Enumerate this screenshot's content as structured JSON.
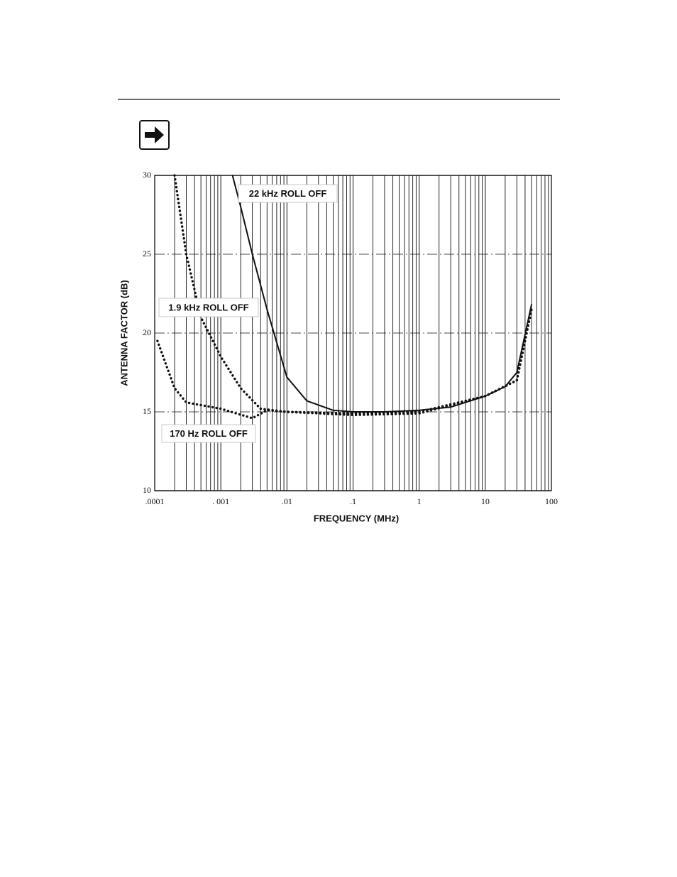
{
  "chart_data": {
    "type": "line",
    "x_label": "FREQUENCY (MHz)",
    "y_label": "ANTENNA FACTOR (dB)",
    "xscale": "log",
    "xlim": [
      0.0001,
      100
    ],
    "ylim": [
      10,
      30
    ],
    "xticks": [
      {
        "value": 0.0001,
        "label": ".0001"
      },
      {
        "value": 0.001,
        "label": ". 001"
      },
      {
        "value": 0.01,
        "label": ".01"
      },
      {
        "value": 0.1,
        "label": ".1"
      },
      1,
      10,
      100
    ],
    "yticks": [
      10,
      15,
      20,
      25,
      30
    ],
    "grid": true,
    "series": [
      {
        "name": "22 kHz ROLL OFF",
        "color": "#111111",
        "style": "solid",
        "x": [
          0.0015,
          0.002,
          0.003,
          0.005,
          0.01,
          0.02,
          0.05,
          0.1,
          0.3,
          1,
          3,
          10,
          20,
          30,
          50
        ],
        "values": [
          30,
          28,
          25,
          21.5,
          17.2,
          15.7,
          15.1,
          15,
          15,
          15.1,
          15.3,
          16,
          16.6,
          17.5,
          21.8
        ]
      },
      {
        "name": "1.9 kHz ROLL OFF",
        "color": "#111111",
        "style": "dotted",
        "x": [
          0.0002,
          0.0003,
          0.0005,
          0.001,
          0.002,
          0.004,
          0.01,
          0.1,
          1,
          10,
          30,
          50
        ],
        "values": [
          30,
          25,
          21,
          18.5,
          16.5,
          15.2,
          15,
          14.9,
          15,
          16,
          17,
          21.5
        ]
      },
      {
        "name": "170 Hz ROLL OFF",
        "color": "#111111",
        "style": "dotted",
        "x": [
          0.00011,
          0.0002,
          0.0003,
          0.001,
          0.003,
          0.005,
          0.01,
          0.1,
          1,
          10,
          30,
          50
        ],
        "values": [
          19.5,
          16.5,
          15.6,
          15.2,
          14.6,
          15.1,
          15,
          14.8,
          14.9,
          16,
          17,
          21.5
        ]
      }
    ]
  }
}
